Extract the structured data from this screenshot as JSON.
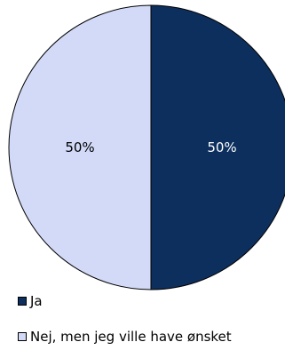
{
  "chart_data": {
    "type": "pie",
    "slices": [
      {
        "label": "Ja",
        "value": 50,
        "data_label": "50%",
        "color": "#0d2f5e"
      },
      {
        "label": "Nej, men jeg ville have ønsket",
        "value": 50,
        "data_label": "50%",
        "color": "#d2daf8"
      }
    ],
    "legend": {
      "position": "bottom-left"
    },
    "label_color_on_dark": "#ffffff",
    "label_color_on_light": "#000000"
  }
}
